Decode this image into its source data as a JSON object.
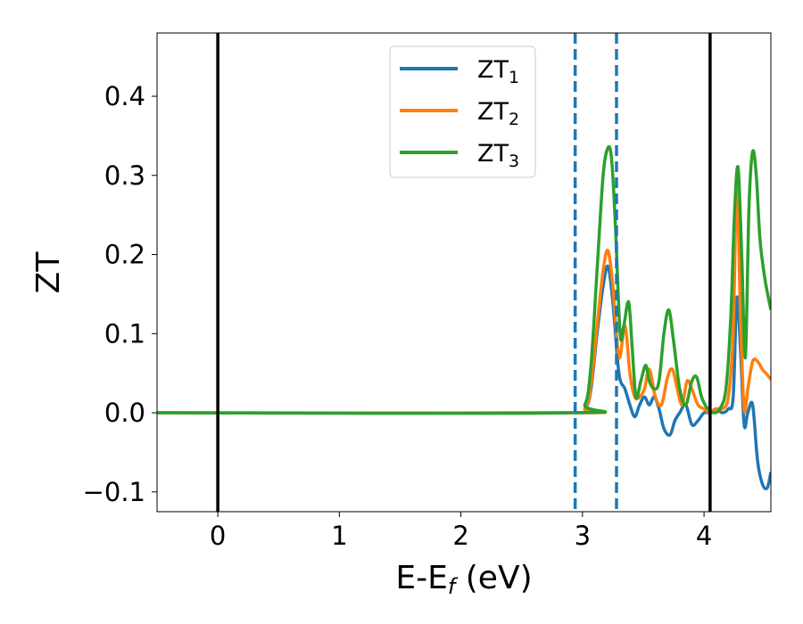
{
  "chart_data": {
    "type": "line",
    "title": "",
    "xlabel": "E-E",
    "xlabel_sub": "f",
    "xlabel_unit": " (eV)",
    "ylabel": "ZT",
    "xlim": [
      -0.5,
      4.55
    ],
    "ylim": [
      -0.125,
      0.48
    ],
    "grid": false,
    "legend_position": "top-center",
    "xticks": [
      0,
      1,
      2,
      3,
      4
    ],
    "xtick_labels": [
      "0",
      "1",
      "2",
      "3",
      "4"
    ],
    "yticks": [
      -0.1,
      0.0,
      0.1,
      0.2,
      0.3,
      0.4
    ],
    "ytick_labels": [
      "−0.1",
      "0.0",
      "0.1",
      "0.2",
      "0.3",
      "0.4"
    ],
    "vertical_lines": [
      {
        "x": 0.0,
        "style": "solid",
        "color": "#000000"
      },
      {
        "x": 4.05,
        "style": "solid",
        "color": "#000000"
      },
      {
        "x": 2.94,
        "style": "dashed",
        "color": "#1f77b4"
      },
      {
        "x": 3.28,
        "style": "dashed",
        "color": "#1f77b4"
      }
    ],
    "series": [
      {
        "name": "ZT",
        "name_sub": "1",
        "color": "#1f77b4",
        "x": [
          -0.5,
          2.9,
          3.02,
          3.07,
          3.12,
          3.17,
          3.21,
          3.25,
          3.3,
          3.35,
          3.39,
          3.43,
          3.47,
          3.51,
          3.55,
          3.59,
          3.63,
          3.67,
          3.72,
          3.76,
          3.8,
          3.85,
          3.9,
          3.95,
          4.0,
          4.05,
          4.1,
          4.15,
          4.2,
          4.24,
          4.27,
          4.3,
          4.33,
          4.36,
          4.4,
          4.44,
          4.48,
          4.52,
          4.55
        ],
        "y": [
          0.0,
          0.0,
          0.005,
          0.03,
          0.1,
          0.16,
          0.185,
          0.14,
          0.05,
          0.03,
          0.01,
          -0.005,
          0.01,
          0.02,
          0.01,
          0.02,
          0.005,
          -0.02,
          -0.028,
          -0.01,
          0.0,
          0.01,
          -0.015,
          -0.01,
          0.0,
          0.0,
          0.005,
          0.0,
          0.005,
          0.02,
          0.145,
          0.08,
          -0.015,
          0.0,
          0.01,
          -0.06,
          -0.09,
          -0.095,
          -0.075
        ]
      },
      {
        "name": "ZT",
        "name_sub": "2",
        "color": "#ff7f0e",
        "x": [
          -0.5,
          2.9,
          3.02,
          3.07,
          3.12,
          3.17,
          3.21,
          3.25,
          3.3,
          3.35,
          3.39,
          3.43,
          3.47,
          3.51,
          3.55,
          3.6,
          3.65,
          3.7,
          3.74,
          3.78,
          3.82,
          3.86,
          3.9,
          3.95,
          4.0,
          4.05,
          4.1,
          4.15,
          4.2,
          4.24,
          4.27,
          4.3,
          4.33,
          4.36,
          4.4,
          4.44,
          4.48,
          4.52,
          4.55
        ],
        "y": [
          0.0,
          0.0,
          0.005,
          0.035,
          0.11,
          0.18,
          0.205,
          0.16,
          0.07,
          0.11,
          0.05,
          0.02,
          0.02,
          0.03,
          0.055,
          0.02,
          0.01,
          0.045,
          0.055,
          0.03,
          0.01,
          0.04,
          0.03,
          0.01,
          0.005,
          0.0,
          0.005,
          0.005,
          0.02,
          0.1,
          0.29,
          0.12,
          0.005,
          0.03,
          0.065,
          0.065,
          0.055,
          0.048,
          0.042
        ]
      },
      {
        "name": "ZT",
        "name_sub": "3",
        "color": "#2ca02c",
        "x": [
          -0.5,
          2.9,
          3.02,
          3.07,
          3.12,
          3.17,
          3.21,
          3.24,
          3.27,
          3.31,
          3.34,
          3.38,
          3.41,
          3.44,
          3.48,
          3.52,
          3.55,
          3.59,
          3.63,
          3.67,
          3.71,
          3.75,
          3.8,
          3.85,
          3.9,
          3.94,
          3.98,
          4.03,
          4.08,
          4.13,
          4.18,
          4.22,
          4.25,
          4.28,
          4.31,
          4.34,
          4.37,
          4.4,
          4.43,
          4.46,
          4.5,
          4.55
        ],
        "y": [
          0.0,
          0.0,
          0.01,
          0.06,
          0.18,
          0.3,
          0.335,
          0.32,
          0.24,
          0.1,
          0.11,
          0.14,
          0.08,
          0.02,
          0.04,
          0.06,
          0.04,
          0.03,
          0.04,
          0.1,
          0.13,
          0.09,
          0.03,
          0.01,
          0.04,
          0.045,
          0.02,
          0.005,
          0.0,
          0.005,
          0.03,
          0.12,
          0.25,
          0.31,
          0.2,
          0.07,
          0.26,
          0.33,
          0.3,
          0.22,
          0.17,
          0.13
        ]
      }
    ]
  }
}
